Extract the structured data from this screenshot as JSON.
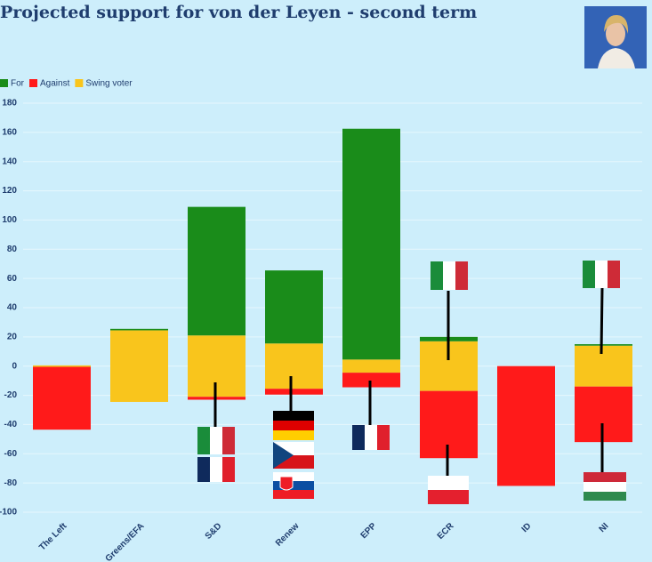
{
  "chart_data": {
    "type": "bar",
    "title": "Projected support for von der Leyen - second term",
    "categories": [
      "The Left",
      "Greens/EFA",
      "S&D",
      "Renew",
      "EPP",
      "ECR",
      "ID",
      "NI"
    ],
    "series": [
      {
        "name": "For",
        "color": "#1a8c1a",
        "values": [
          0,
          1,
          88,
          50,
          158,
          3,
          0,
          1
        ]
      },
      {
        "name": "Against",
        "color": "#ff1a1a",
        "values": [
          43,
          0,
          2,
          4,
          10,
          46,
          82,
          38
        ]
      },
      {
        "name": "Swing voter",
        "color": "#f9c51c",
        "values": [
          1,
          49,
          42,
          31,
          9,
          34,
          0,
          28
        ]
      }
    ],
    "ylim": [
      -100,
      180
    ],
    "yticks": [
      -100,
      -80,
      -60,
      -40,
      -20,
      0,
      20,
      40,
      60,
      80,
      100,
      120,
      140,
      160,
      180
    ],
    "grid": true
  }
}
